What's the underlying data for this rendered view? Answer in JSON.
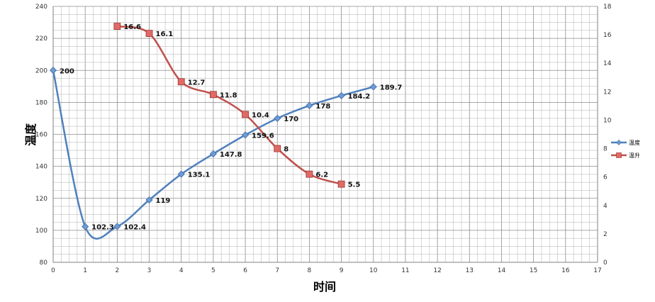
{
  "chart_data": {
    "type": "line",
    "xlabel": "时间",
    "ylabel": "温度",
    "x_ticks": [
      0,
      1,
      2,
      3,
      4,
      5,
      6,
      7,
      8,
      9,
      10,
      11,
      12,
      13,
      14,
      15,
      16,
      17
    ],
    "xlim": [
      0,
      17
    ],
    "ylim": [
      80,
      240
    ],
    "y_ticks": [
      80,
      100,
      120,
      140,
      160,
      180,
      200,
      220,
      240
    ],
    "y2lim": [
      0,
      18
    ],
    "y2_ticks": [
      0,
      2,
      4,
      6,
      8,
      10,
      12,
      14,
      16,
      18
    ],
    "grid": true,
    "legend_position": "right",
    "series": [
      {
        "name": "温度",
        "axis": "left",
        "color": "#4F81BD",
        "marker": "diamond",
        "x": [
          0,
          1,
          2,
          3,
          4,
          5,
          6,
          7,
          8,
          9,
          10
        ],
        "values": [
          200,
          102.3,
          102.4,
          119,
          135.1,
          147.8,
          159.6,
          170,
          178,
          184.2,
          189.7
        ],
        "labels": [
          "200",
          "102.3",
          "102.4",
          "119",
          "135.1",
          "147.8",
          "159.6",
          "170",
          "178",
          "184.2",
          "189.7"
        ]
      },
      {
        "name": "温升",
        "axis": "right",
        "color": "#C0504D",
        "marker": "square",
        "x": [
          2,
          3,
          4,
          5,
          6,
          7,
          8,
          9
        ],
        "values": [
          16.6,
          16.1,
          12.7,
          11.8,
          10.4,
          8,
          6.2,
          5.5
        ],
        "labels": [
          "16.6",
          "16.1",
          "12.7",
          "11.8",
          "10.4",
          "8",
          "6.2",
          "5.5"
        ]
      }
    ]
  }
}
